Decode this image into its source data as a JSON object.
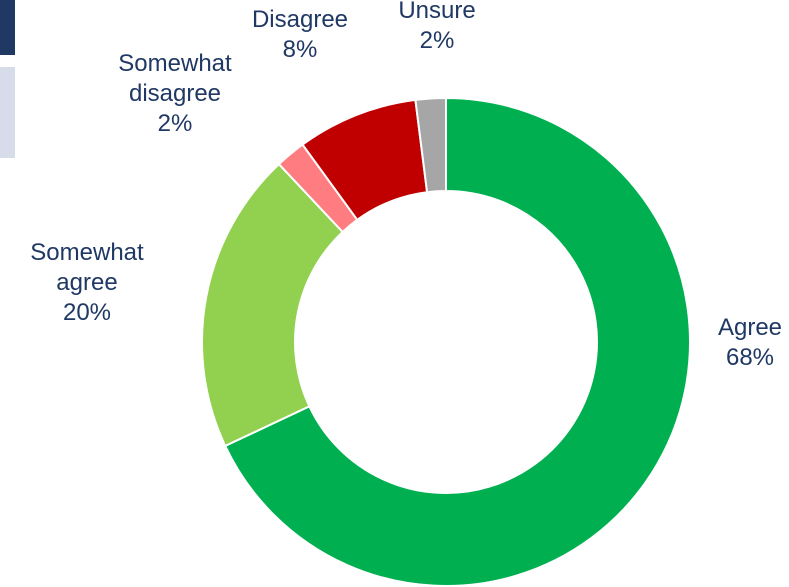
{
  "chart_data": {
    "type": "pie",
    "variant": "donut",
    "title": "",
    "slices": [
      {
        "label": [
          "Agree"
        ],
        "value_label": "68%",
        "value": 68,
        "color": "#00b050"
      },
      {
        "label": [
          "Somewhat",
          "agree"
        ],
        "value_label": "20%",
        "value": 20,
        "color": "#92d050"
      },
      {
        "label": [
          "Somewhat",
          "disagree"
        ],
        "value_label": "2%",
        "value": 2,
        "color": "#ff7c80"
      },
      {
        "label": [
          "Disagree"
        ],
        "value_label": "8%",
        "value": 8,
        "color": "#c00000"
      },
      {
        "label": [
          "Unsure"
        ],
        "value_label": "2%",
        "value": 2,
        "color": "#a6a6a6"
      }
    ],
    "label_color": "#1f3864",
    "legend": "none"
  }
}
